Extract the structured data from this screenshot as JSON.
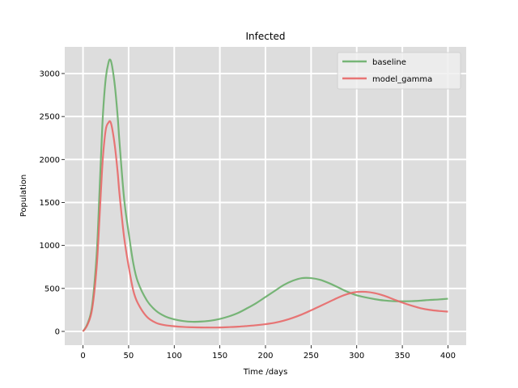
{
  "chart_data": {
    "type": "line",
    "title": "Infected",
    "xlabel": "Time /days",
    "ylabel": "Population",
    "xlim": [
      -20,
      420
    ],
    "ylim": [
      -160,
      3310
    ],
    "xticks": [
      0,
      50,
      100,
      150,
      200,
      250,
      300,
      350,
      400
    ],
    "yticks": [
      0,
      500,
      1000,
      1500,
      2000,
      2500,
      3000
    ],
    "grid": true,
    "legend_position": "top-right",
    "background_color": "#dddddd",
    "grid_color": "#ffffff",
    "series": [
      {
        "name": "baseline",
        "color": "#6aaf6a",
        "x": [
          0,
          5,
          10,
          15,
          18,
          20,
          22,
          25,
          28,
          30,
          32,
          35,
          38,
          40,
          45,
          50,
          55,
          60,
          70,
          80,
          90,
          100,
          110,
          120,
          130,
          140,
          150,
          160,
          170,
          180,
          190,
          200,
          210,
          220,
          230,
          240,
          250,
          260,
          270,
          280,
          290,
          300,
          310,
          320,
          330,
          340,
          350,
          360,
          370,
          380,
          390,
          400
        ],
        "y": [
          0,
          90,
          300,
          900,
          1600,
          2100,
          2550,
          2950,
          3130,
          3160,
          3080,
          2850,
          2500,
          2200,
          1550,
          1150,
          800,
          580,
          360,
          240,
          175,
          140,
          120,
          112,
          115,
          125,
          145,
          175,
          215,
          270,
          330,
          400,
          470,
          540,
          590,
          620,
          620,
          600,
          560,
          510,
          460,
          420,
          395,
          375,
          360,
          352,
          350,
          352,
          358,
          366,
          372,
          380
        ]
      },
      {
        "name": "model_gamma",
        "color": "#e86868",
        "x": [
          0,
          5,
          10,
          15,
          18,
          20,
          22,
          25,
          28,
          30,
          32,
          35,
          38,
          40,
          45,
          50,
          55,
          60,
          70,
          80,
          90,
          100,
          110,
          120,
          130,
          140,
          150,
          160,
          170,
          180,
          190,
          200,
          210,
          220,
          230,
          240,
          250,
          260,
          270,
          280,
          290,
          300,
          310,
          320,
          330,
          340,
          350,
          360,
          370,
          380,
          390,
          400
        ],
        "y": [
          0,
          80,
          260,
          750,
          1300,
          1700,
          2050,
          2350,
          2430,
          2440,
          2360,
          2150,
          1850,
          1600,
          1100,
          760,
          480,
          330,
          170,
          100,
          72,
          60,
          52,
          48,
          46,
          45,
          46,
          50,
          55,
          63,
          72,
          84,
          100,
          125,
          158,
          198,
          245,
          295,
          345,
          395,
          435,
          458,
          460,
          445,
          415,
          375,
          335,
          300,
          270,
          250,
          238,
          230
        ]
      }
    ]
  }
}
